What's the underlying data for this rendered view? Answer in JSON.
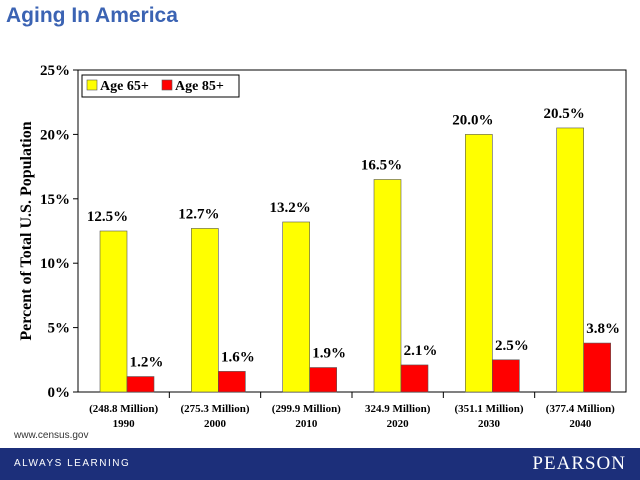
{
  "page": {
    "title": "Aging In America",
    "source": "www.census.gov",
    "footer_left": "ALWAYS LEARNING",
    "footer_right": "PEARSON"
  },
  "colors": {
    "age65": "#ffff00",
    "age85": "#ff0000",
    "title": "#3b63b3",
    "footer": "#1c2f7a"
  },
  "chart_data": {
    "type": "bar",
    "title": "",
    "xlabel": "",
    "ylabel": "Percent of Total U.S. Population",
    "ylim": [
      0,
      25
    ],
    "yticks": [
      "0%",
      "5%",
      "10%",
      "15%",
      "20%",
      "25%"
    ],
    "categories": [
      {
        "line1": "(248.8 Million)",
        "line2": "1990"
      },
      {
        "line1": "(275.3 Million)",
        "line2": "2000"
      },
      {
        "line1": "(299.9 Million)",
        "line2": "2010"
      },
      {
        "line1": "324.9 Million)",
        "line2": "2020"
      },
      {
        "line1": "(351.1 Million)",
        "line2": "2030"
      },
      {
        "line1": "(377.4 Million)",
        "line2": "2040"
      }
    ],
    "legend_position": "top-left",
    "series": [
      {
        "name": "Age 65+",
        "color": "#ffff00",
        "values": [
          12.5,
          12.7,
          13.2,
          16.5,
          20.0,
          20.5
        ],
        "labels": [
          "12.5%",
          "12.7%",
          "13.2%",
          "16.5%",
          "20.0%",
          "20.5%"
        ]
      },
      {
        "name": "Age 85+",
        "color": "#ff0000",
        "values": [
          1.2,
          1.6,
          1.9,
          2.1,
          2.5,
          3.8
        ],
        "labels": [
          "1.2%",
          "1.6%",
          "1.9%",
          "2.1%",
          "2.5%",
          "3.8%"
        ]
      }
    ]
  }
}
